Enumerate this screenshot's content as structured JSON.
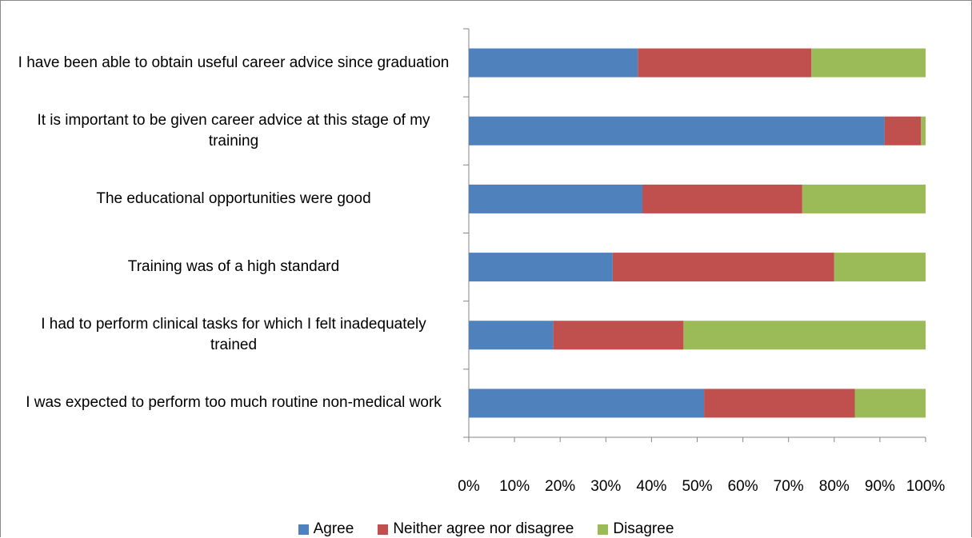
{
  "chart_data": {
    "type": "stacked-bar-horizontal",
    "categories": [
      "I have been able to obtain useful career advice since graduation",
      "It is important to be given career advice at this stage of my training",
      "The educational opportunities were good",
      "Training was of a high standard",
      "I had to perform clinical tasks for which I felt inadequately trained",
      "I was expected to perform too much routine non-medical work"
    ],
    "series": [
      {
        "name": "Agree",
        "color": "#4f81bd",
        "values": [
          37,
          91,
          38,
          31.5,
          18.5,
          51.5
        ]
      },
      {
        "name": "Neither agree nor disagree",
        "color": "#c0504d",
        "values": [
          38,
          8,
          35,
          48.5,
          28.5,
          33
        ]
      },
      {
        "name": "Disagree",
        "color": "#9bbb59",
        "values": [
          25,
          1,
          27,
          20,
          53,
          15.5
        ]
      }
    ],
    "xlim": [
      0,
      100
    ],
    "xticks": [
      {
        "value": 0,
        "label": "0%"
      },
      {
        "value": 10,
        "label": "10%"
      },
      {
        "value": 20,
        "label": "20%"
      },
      {
        "value": 30,
        "label": "30%"
      },
      {
        "value": 40,
        "label": "40%"
      },
      {
        "value": 50,
        "label": "50%"
      },
      {
        "value": 60,
        "label": "60%"
      },
      {
        "value": 70,
        "label": "70%"
      },
      {
        "value": 80,
        "label": "80%"
      },
      {
        "value": 90,
        "label": "90%"
      },
      {
        "value": 100,
        "label": "100%"
      }
    ],
    "legend": "bottom"
  }
}
